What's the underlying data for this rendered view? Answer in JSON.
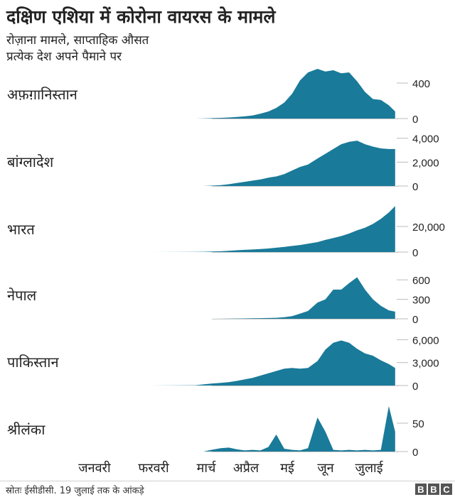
{
  "title": "दक्षिण एशिया में कोरोना वायरस के मामले",
  "subtitle_1": "रोज़ाना मामले, साप्ताहिक औसत",
  "subtitle_2": "प्रत्येक देश अपने पैमाने पर",
  "source": "स्रोतः ईसीडीसी. 19 जुलाई तक के आंकड़े",
  "logo": [
    "B",
    "B",
    "C"
  ],
  "colors": {
    "area": "#1a7a99",
    "baseline": "#cccccc",
    "text": "#222222"
  },
  "chart_data": {
    "type": "area",
    "x_labels": [
      "जनवरी",
      "फरवरी",
      "मार्च",
      "अप्रैल",
      "मई",
      "जून",
      "जुलाई"
    ],
    "x": [
      "2020-01-15",
      "2020-02-15",
      "2020-03-15",
      "2020-03-20",
      "2020-03-25",
      "2020-03-31",
      "2020-04-05",
      "2020-04-10",
      "2020-04-15",
      "2020-04-20",
      "2020-04-25",
      "2020-04-30",
      "2020-05-05",
      "2020-05-10",
      "2020-05-15",
      "2020-05-20",
      "2020-05-25",
      "2020-05-31",
      "2020-06-05",
      "2020-06-10",
      "2020-06-15",
      "2020-06-20",
      "2020-06-25",
      "2020-06-30",
      "2020-07-05",
      "2020-07-10",
      "2020-07-15",
      "2020-07-19"
    ],
    "series": [
      {
        "name": "अफ़ग़ानिस्तान",
        "ticks": [
          "400",
          "0"
        ],
        "ymax": 560,
        "values": [
          0,
          0,
          0,
          2,
          5,
          8,
          12,
          18,
          25,
          35,
          55,
          80,
          120,
          180,
          280,
          430,
          520,
          560,
          530,
          545,
          510,
          520,
          420,
          300,
          220,
          210,
          150,
          80
        ]
      },
      {
        "name": "बांग्लादेश",
        "ticks": [
          "4,000",
          "2,000",
          "0"
        ],
        "ymax": 4400,
        "values": [
          0,
          0,
          0,
          0,
          30,
          80,
          150,
          250,
          350,
          450,
          550,
          700,
          800,
          1000,
          1300,
          1600,
          1800,
          2300,
          2700,
          3100,
          3500,
          3700,
          3800,
          3500,
          3300,
          3150,
          3100,
          3100
        ]
      },
      {
        "name": "भारत",
        "ticks": [
          "20,000",
          "0"
        ],
        "ymax": 40000,
        "values": [
          0,
          0,
          100,
          250,
          400,
          600,
          1000,
          1400,
          1700,
          2000,
          2400,
          2800,
          3400,
          4000,
          4800,
          5500,
          6500,
          7800,
          9500,
          11000,
          12500,
          14500,
          17000,
          19000,
          22000,
          26000,
          31000,
          36000
        ]
      },
      {
        "name": "नेपाल",
        "ticks": [
          "600",
          "300",
          "0"
        ],
        "ymax": 700,
        "values": [
          0,
          0,
          0,
          0,
          0,
          1,
          2,
          4,
          6,
          8,
          10,
          12,
          15,
          25,
          40,
          80,
          120,
          250,
          300,
          450,
          450,
          550,
          640,
          450,
          300,
          200,
          130,
          110
        ]
      },
      {
        "name": "पाकिस्तान",
        "ticks": [
          "6,000",
          "3,000",
          "0"
        ],
        "ymax": 6500,
        "values": [
          0,
          0,
          40,
          150,
          250,
          350,
          450,
          600,
          800,
          1000,
          1300,
          1600,
          1900,
          2200,
          2300,
          2200,
          2300,
          3200,
          4700,
          5600,
          5900,
          5600,
          4800,
          4200,
          3900,
          3300,
          2800,
          2300
        ]
      },
      {
        "name": "श्रीलंका",
        "ticks": [
          "50",
          "0"
        ],
        "ymax": 85,
        "values": [
          0,
          0,
          0,
          0,
          3,
          6,
          7,
          4,
          2,
          3,
          2,
          8,
          30,
          5,
          3,
          2,
          6,
          60,
          35,
          3,
          2,
          3,
          2,
          3,
          2,
          3,
          80,
          35
        ]
      }
    ]
  }
}
